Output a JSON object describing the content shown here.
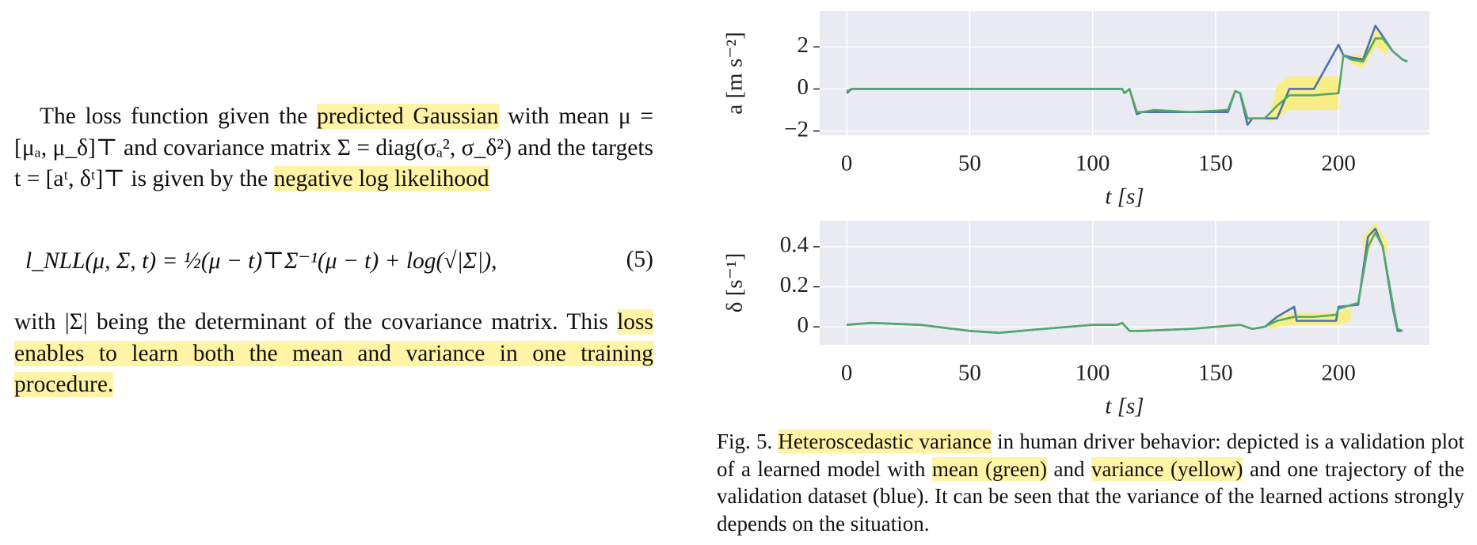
{
  "paragraph_1": [
    {
      "text": "The loss function given the ",
      "highlight": false
    },
    {
      "text": "predicted Gaussian",
      "highlight": true
    },
    {
      "text": " with mean μ = [μₐ, μ_δ]⊤ and covariance matrix Σ = diag(σₐ², σ_δ²) and the targets t = [aᵗ, δᵗ]⊤ is given by the ",
      "highlight": false
    },
    {
      "text": "negative log likelihood",
      "highlight": true
    }
  ],
  "equation": {
    "text": "l_NLL(μ, Σ, t) = ½(μ − t)⊤Σ⁻¹(μ − t) + log(√|Σ|),",
    "number": "(5)"
  },
  "paragraph_2": [
    {
      "text": "with |Σ| being the determinant of the covariance matrix. This ",
      "highlight": false
    },
    {
      "text": "loss enables to learn both the mean and variance in one training procedure.",
      "highlight": true
    }
  ],
  "caption": [
    {
      "text": "Fig. 5.   ",
      "highlight": false
    },
    {
      "text": "Heteroscedastic variance",
      "highlight": true
    },
    {
      "text": " in human driver behavior: depicted is a validation plot of a learned model with ",
      "highlight": false
    },
    {
      "text": "mean (green)",
      "highlight": true
    },
    {
      "text": " and ",
      "highlight": false
    },
    {
      "text": "variance (yellow)",
      "highlight": true
    },
    {
      "text": " and one trajectory of the validation dataset (blue). It can be seen that the variance of the learned actions strongly depends on the situation.",
      "highlight": false
    }
  ],
  "chart_data": [
    {
      "type": "line",
      "x_label": "t [s]",
      "y_label": "a [m s⁻²]",
      "xlim": [
        -11,
        237
      ],
      "ylim": [
        -2.2,
        3.7
      ],
      "xticks": [
        0,
        50,
        100,
        150,
        200
      ],
      "yticks": [
        {
          "value": -2,
          "label": "−2"
        },
        0,
        2
      ],
      "grid": true,
      "background": "#eaeaf2",
      "bands": [
        {
          "color": "#fbee7a",
          "x": [
            172,
            175,
            180,
            190,
            200
          ],
          "upper": [
            -1.2,
            0.2,
            0.6,
            0.6,
            0.6
          ],
          "lower": [
            -1.6,
            -1.4,
            -1.0,
            -1.0,
            -1.0
          ]
        },
        {
          "color": "#fbee7a",
          "x": [
            205,
            210,
            215,
            220
          ],
          "upper": [
            1.6,
            1.6,
            2.8,
            2.2
          ],
          "lower": [
            1.2,
            1.0,
            2.0,
            1.6
          ]
        }
      ],
      "series": [
        {
          "color": "#4c72b0",
          "x": [
            0,
            2,
            5,
            50,
            100,
            112,
            113,
            115,
            118,
            120,
            125,
            140,
            155,
            158,
            160,
            163,
            165,
            170,
            175,
            180,
            190,
            200,
            202,
            205,
            210,
            215,
            218,
            222,
            226,
            228
          ],
          "values": [
            -0.2,
            0,
            0,
            0,
            0,
            0,
            -0.2,
            0,
            -1.2,
            -1.1,
            -1.1,
            -1.1,
            -1.1,
            -0.1,
            -0.2,
            -1.7,
            -1.4,
            -1.4,
            -1.4,
            0,
            0,
            2.1,
            1.6,
            1.5,
            1.4,
            3.0,
            2.5,
            1.8,
            1.4,
            1.3
          ]
        },
        {
          "color": "#55a868",
          "x": [
            0,
            2,
            5,
            50,
            100,
            112,
            113,
            115,
            118,
            120,
            125,
            140,
            155,
            158,
            160,
            163,
            165,
            170,
            175,
            180,
            190,
            200,
            202,
            205,
            210,
            215,
            218,
            222,
            226,
            228
          ],
          "values": [
            -0.1,
            0,
            0,
            0,
            0,
            0,
            -0.2,
            0,
            -1.1,
            -1.1,
            -1.0,
            -1.1,
            -1.0,
            -0.1,
            -0.2,
            -1.4,
            -1.4,
            -1.4,
            -0.8,
            -0.3,
            -0.3,
            -0.2,
            1.6,
            1.4,
            1.3,
            2.4,
            2.4,
            1.8,
            1.4,
            1.3
          ]
        }
      ]
    },
    {
      "type": "line",
      "x_label": "t [s]",
      "y_label": "δ [s⁻¹]",
      "xlim": [
        -11,
        237
      ],
      "ylim": [
        -0.09,
        0.53
      ],
      "xticks": [
        0,
        50,
        100,
        150,
        200
      ],
      "yticks": [
        0,
        0.2,
        0.4
      ],
      "grid": true,
      "background": "#eaeaf2",
      "bands": [
        {
          "color": "#fbee7a",
          "x": [
            172,
            180,
            200,
            205
          ],
          "upper": [
            0.03,
            0.07,
            0.07,
            0.1
          ],
          "lower": [
            -0.01,
            0.01,
            0.01,
            0.03
          ]
        },
        {
          "color": "#fbee7a",
          "x": [
            210,
            215,
            220
          ],
          "upper": [
            0.45,
            0.52,
            0.42
          ],
          "lower": [
            0.3,
            0.46,
            0.36
          ]
        }
      ],
      "series": [
        {
          "color": "#4c72b0",
          "x": [
            0,
            10,
            30,
            50,
            62,
            80,
            100,
            110,
            112,
            115,
            120,
            140,
            160,
            165,
            170,
            175,
            182,
            183,
            199,
            200,
            208,
            212,
            215,
            218,
            222,
            224,
            226
          ],
          "values": [
            0.01,
            0.02,
            0.01,
            -0.02,
            -0.03,
            -0.01,
            0.01,
            0.01,
            0.02,
            -0.02,
            -0.02,
            -0.01,
            0.01,
            -0.01,
            0,
            0.05,
            0.1,
            0.03,
            0.03,
            0.1,
            0.11,
            0.45,
            0.49,
            0.4,
            0.1,
            -0.02,
            -0.02
          ]
        },
        {
          "color": "#55a868",
          "x": [
            0,
            10,
            30,
            50,
            62,
            80,
            100,
            110,
            112,
            115,
            120,
            140,
            160,
            165,
            170,
            175,
            182,
            190,
            199,
            200,
            208,
            212,
            215,
            218,
            222,
            224,
            226
          ],
          "values": [
            0.01,
            0.02,
            0.01,
            -0.02,
            -0.03,
            -0.01,
            0.01,
            0.01,
            0.02,
            -0.02,
            -0.02,
            -0.01,
            0.01,
            -0.01,
            0,
            0.03,
            0.05,
            0.05,
            0.06,
            0.09,
            0.12,
            0.4,
            0.47,
            0.4,
            0.12,
            -0.01,
            -0.02
          ]
        }
      ]
    }
  ]
}
